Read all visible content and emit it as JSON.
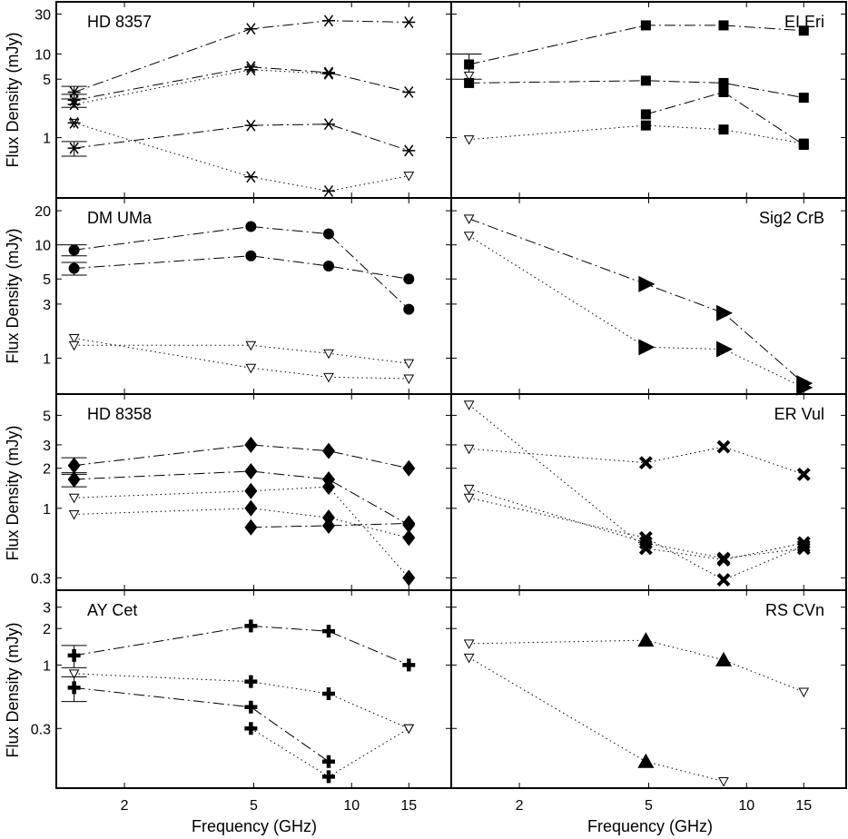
{
  "figure": {
    "xlabel": "Frequency (GHz)",
    "ylabel": "Flux Density (mJy)"
  },
  "chart_data": [
    {
      "title": "HD 8357",
      "type": "scatter",
      "xscale": "log",
      "yscale": "log",
      "xlim": [
        1.25,
        20
      ],
      "ylim": [
        0.2,
        40
      ],
      "xticks": [
        2,
        5,
        10,
        15
      ],
      "yticks": [
        1,
        5,
        10,
        30
      ],
      "series": [
        {
          "marker": "asterisk",
          "line": "dashdot",
          "x": [
            1.4,
            4.9,
            8.5,
            15
          ],
          "y": [
            3.5,
            20,
            25,
            24
          ],
          "err": [
            0.6,
            0,
            0,
            0
          ]
        },
        {
          "marker": "asterisk",
          "line": "dashdot",
          "x": [
            1.4,
            4.9,
            8.5,
            15
          ],
          "y": [
            2.8,
            7.0,
            6.0,
            3.5
          ],
          "err": [
            0.5,
            0,
            0,
            0
          ]
        },
        {
          "marker": "asterisk",
          "line": "dotted",
          "x": [
            1.4,
            4.9,
            8.5
          ],
          "y": [
            2.5,
            6.5,
            5.8
          ],
          "err": [
            0,
            0,
            0
          ]
        },
        {
          "marker": "triangle-down-open",
          "line": "dotted",
          "x": [
            1.4
          ],
          "y": [
            1.5
          ]
        },
        {
          "marker": "asterisk",
          "line": "dashdot",
          "x": [
            1.4,
            4.9,
            8.5,
            15
          ],
          "y": [
            0.75,
            1.4,
            1.45,
            0.7
          ],
          "err": [
            0.15,
            0,
            0,
            0
          ]
        },
        {
          "marker": "asterisk",
          "line": "dotted",
          "x": [
            1.4,
            4.9,
            8.5,
            15
          ],
          "y": [
            1.5,
            0.34,
            0.23,
            0.35
          ],
          "open_last": true
        }
      ]
    },
    {
      "title": "EI Eri",
      "type": "scatter",
      "xscale": "log",
      "yscale": "log",
      "xlim": [
        1.25,
        20
      ],
      "ylim": [
        0.2,
        40
      ],
      "xticks": [
        2,
        5,
        10,
        15
      ],
      "yticks": [
        1,
        5,
        10,
        30
      ],
      "series": [
        {
          "marker": "square",
          "line": "dashdot",
          "x": [
            1.4,
            4.9,
            8.5,
            15
          ],
          "y": [
            7.5,
            22,
            22,
            19
          ],
          "err": [
            2.5,
            0,
            0,
            0
          ]
        },
        {
          "marker": "triangle-down-open",
          "line": "dotted",
          "x": [
            1.4
          ],
          "y": [
            5.5
          ]
        },
        {
          "marker": "square",
          "line": "dashdot",
          "x": [
            1.4,
            4.9,
            8.5,
            15
          ],
          "y": [
            4.5,
            4.8,
            4.5,
            3.0
          ]
        },
        {
          "marker": "square",
          "line": "dashdot",
          "x": [
            4.9,
            8.5,
            15
          ],
          "y": [
            1.9,
            3.5,
            0.82
          ]
        },
        {
          "marker": "square",
          "line": "dotted",
          "x": [
            1.4,
            4.9,
            8.5,
            15
          ],
          "y": [
            0.95,
            1.4,
            1.25,
            0.85
          ],
          "open_first": true
        }
      ]
    },
    {
      "title": "DM UMa",
      "type": "scatter",
      "xscale": "log",
      "yscale": "log",
      "xlim": [
        1.25,
        20
      ],
      "ylim": [
        0.5,
        25
      ],
      "xticks": [
        2,
        5,
        10,
        15
      ],
      "yticks": [
        1,
        3,
        5,
        10,
        20
      ],
      "series": [
        {
          "marker": "circle",
          "line": "dashdot",
          "x": [
            1.4,
            4.9,
            8.5,
            15
          ],
          "y": [
            9.0,
            14.5,
            12.5,
            2.7
          ],
          "err": [
            1.0,
            0,
            0,
            0
          ]
        },
        {
          "marker": "circle",
          "line": "dashdot",
          "x": [
            1.4,
            4.9,
            8.5,
            15
          ],
          "y": [
            6.2,
            8.0,
            6.5,
            5.0
          ],
          "err": [
            0.8,
            0,
            0,
            0
          ]
        },
        {
          "marker": "triangle-down-open",
          "line": "dotted",
          "x": [
            1.4,
            4.9,
            8.5,
            15
          ],
          "y": [
            1.5,
            0.82,
            0.68,
            0.66
          ],
          "open_first": true
        },
        {
          "marker": "triangle-down-open",
          "line": "dotted",
          "x": [
            1.4,
            4.9,
            8.5,
            15
          ],
          "y": [
            1.3,
            1.3,
            1.1,
            0.9
          ],
          "open_first": true
        }
      ]
    },
    {
      "title": "Sig2 CrB",
      "type": "scatter",
      "xscale": "log",
      "yscale": "log",
      "xlim": [
        1.25,
        20
      ],
      "ylim": [
        0.5,
        25
      ],
      "xticks": [
        2,
        5,
        10,
        15
      ],
      "yticks": [
        1,
        3,
        5,
        10,
        20
      ],
      "series": [
        {
          "marker": "triangle-right",
          "line": "dashdot",
          "x": [
            1.4,
            4.9,
            8.5,
            15
          ],
          "y": [
            17,
            4.5,
            2.5,
            0.6
          ],
          "open_first": true
        },
        {
          "marker": "triangle-right",
          "line": "dotted",
          "x": [
            1.4,
            4.9,
            8.5,
            15
          ],
          "y": [
            12,
            1.25,
            1.2,
            0.55
          ],
          "open_first": true
        }
      ]
    },
    {
      "title": "HD 8358",
      "type": "scatter",
      "xscale": "log",
      "yscale": "log",
      "xlim": [
        1.25,
        20
      ],
      "ylim": [
        0.25,
        7
      ],
      "xticks": [
        2,
        5,
        10,
        15
      ],
      "yticks": [
        0.3,
        1,
        2,
        3,
        5
      ],
      "series": [
        {
          "marker": "diamond",
          "line": "dashdot",
          "x": [
            1.4,
            4.9,
            8.5,
            15
          ],
          "y": [
            2.1,
            3.0,
            2.7,
            2.0
          ],
          "err": [
            0.3,
            0,
            0,
            0
          ]
        },
        {
          "marker": "diamond",
          "line": "dashdot",
          "x": [
            1.4,
            4.9,
            8.5,
            15
          ],
          "y": [
            1.65,
            1.9,
            1.65,
            0.75
          ],
          "err": [
            0.2,
            0,
            0,
            0
          ]
        },
        {
          "marker": "diamond",
          "line": "dotted",
          "x": [
            1.4,
            4.9,
            8.5,
            15
          ],
          "y": [
            1.2,
            1.35,
            1.45,
            0.3
          ],
          "open_first": true
        },
        {
          "marker": "diamond",
          "line": "dotted",
          "x": [
            1.4,
            4.9,
            8.5,
            15
          ],
          "y": [
            0.9,
            1.0,
            0.85,
            0.6
          ],
          "open_first": true
        },
        {
          "marker": "diamond",
          "line": "dashdot",
          "x": [
            4.9,
            8.5,
            15
          ],
          "y": [
            0.72,
            0.74,
            0.77
          ]
        }
      ]
    },
    {
      "title": "ER Vul",
      "type": "scatter",
      "xscale": "log",
      "yscale": "log",
      "xlim": [
        1.25,
        20
      ],
      "ylim": [
        0.25,
        7
      ],
      "xticks": [
        2,
        5,
        10,
        15
      ],
      "yticks": [
        0.3,
        1,
        2,
        3,
        5
      ],
      "series": [
        {
          "marker": "x-bold",
          "line": "dotted",
          "x": [
            1.4,
            4.9,
            8.5,
            15
          ],
          "y": [
            6.0,
            0.5,
            0.41,
            0.55
          ],
          "open_first": true
        },
        {
          "marker": "x-bold",
          "line": "dotted",
          "x": [
            1.4,
            4.9,
            8.5,
            15
          ],
          "y": [
            2.8,
            2.2,
            2.9,
            1.8
          ],
          "open_first": true
        },
        {
          "marker": "x-bold",
          "line": "dotted",
          "x": [
            1.4,
            4.9,
            8.5,
            15
          ],
          "y": [
            1.4,
            0.55,
            0.42,
            0.5
          ],
          "open_first": true
        },
        {
          "marker": "x-bold",
          "line": "dotted",
          "x": [
            1.4,
            4.9,
            8.5,
            15
          ],
          "y": [
            1.2,
            0.6,
            0.29,
            0.52
          ],
          "open_first": true
        }
      ]
    },
    {
      "title": "AY Cet",
      "type": "scatter",
      "xscale": "log",
      "yscale": "log",
      "xlim": [
        1.25,
        20
      ],
      "ylim": [
        0.1,
        4
      ],
      "xticks": [
        2,
        5,
        10,
        15
      ],
      "yticks": [
        0.3,
        1,
        2,
        3
      ],
      "series": [
        {
          "marker": "plus-bold",
          "line": "dashdot",
          "x": [
            1.4,
            4.9,
            8.5,
            15
          ],
          "y": [
            1.2,
            2.1,
            1.9,
            1.0
          ],
          "err": [
            0.25,
            0,
            0,
            0
          ]
        },
        {
          "marker": "plus-bold",
          "line": "dotted",
          "x": [
            1.4,
            4.9,
            8.5,
            15
          ],
          "y": [
            0.85,
            0.73,
            0.58,
            0.3
          ],
          "open_first": true,
          "open_last": true
        },
        {
          "marker": "plus-bold",
          "line": "dashdot",
          "x": [
            1.4,
            4.9,
            8.5
          ],
          "y": [
            0.65,
            0.45,
            0.16
          ],
          "err": [
            0.15,
            0,
            0
          ]
        },
        {
          "marker": "plus-bold",
          "line": "dotted",
          "x": [
            4.9,
            8.5,
            15
          ],
          "y": [
            0.3,
            0.12,
            0.3
          ],
          "open_last": true
        }
      ]
    },
    {
      "title": "RS CVn",
      "type": "scatter",
      "xscale": "log",
      "yscale": "log",
      "xlim": [
        1.25,
        20
      ],
      "ylim": [
        0.1,
        4
      ],
      "xticks": [
        2,
        5,
        10,
        15
      ],
      "yticks": [
        0.3,
        1,
        2,
        3
      ],
      "series": [
        {
          "marker": "triangle-up",
          "line": "dotted",
          "x": [
            1.4,
            4.9,
            8.5,
            15
          ],
          "y": [
            1.5,
            1.6,
            1.1,
            0.6
          ],
          "open_first": true,
          "open_last": true
        },
        {
          "marker": "triangle-up",
          "line": "dotted",
          "x": [
            1.4,
            4.9,
            8.5
          ],
          "y": [
            1.15,
            0.16,
            0.11
          ],
          "open_first": true,
          "open_last": true
        }
      ]
    }
  ]
}
